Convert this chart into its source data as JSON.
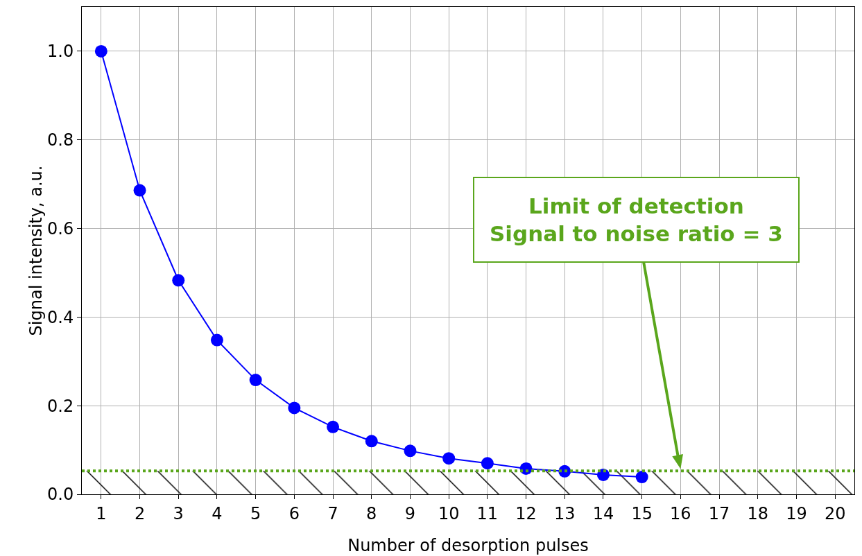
{
  "chart_data": {
    "type": "line",
    "xlabel": "Number of desorption pulses",
    "ylabel": "Signal intensity, a.u.",
    "x": [
      1,
      2,
      3,
      4,
      5,
      6,
      7,
      8,
      9,
      10,
      11,
      12,
      13,
      14,
      15
    ],
    "series": [
      {
        "color": "#0000ff",
        "values": [
          1.0,
          0.686,
          0.483,
          0.348,
          0.258,
          0.195,
          0.152,
          0.12,
          0.098,
          0.081,
          0.07,
          0.058,
          0.052,
          0.044,
          0.039
        ]
      }
    ],
    "xlim": [
      0.5,
      20.5
    ],
    "xticks": [
      1,
      2,
      3,
      4,
      5,
      6,
      7,
      8,
      9,
      10,
      11,
      12,
      13,
      14,
      15,
      16,
      17,
      18,
      19,
      20
    ],
    "ylim": [
      0,
      1.1
    ],
    "yticks": [
      {
        "value": 0,
        "label": "0.0"
      },
      {
        "value": 0.2,
        "label": "0.2"
      },
      {
        "value": 0.4,
        "label": "0.4"
      },
      {
        "value": 0.6,
        "label": "0.6"
      },
      {
        "value": 0.8,
        "label": "0.8"
      },
      {
        "value": 1.0,
        "label": "1.0"
      }
    ],
    "grid": true,
    "marker": "circle",
    "line_style": "solid",
    "ref_lines": [
      {
        "axis": "y",
        "value": 0.053,
        "color": "#5aa61c",
        "line_style": "dotted"
      }
    ],
    "bands": [
      {
        "axis": "y",
        "from": 0,
        "to": 0.053,
        "color": "#000000"
      }
    ],
    "annotations": [
      {
        "text": "Limit of detection\nSignal to noise ratio = 3",
        "x": 16,
        "y": 0.053
      }
    ]
  }
}
